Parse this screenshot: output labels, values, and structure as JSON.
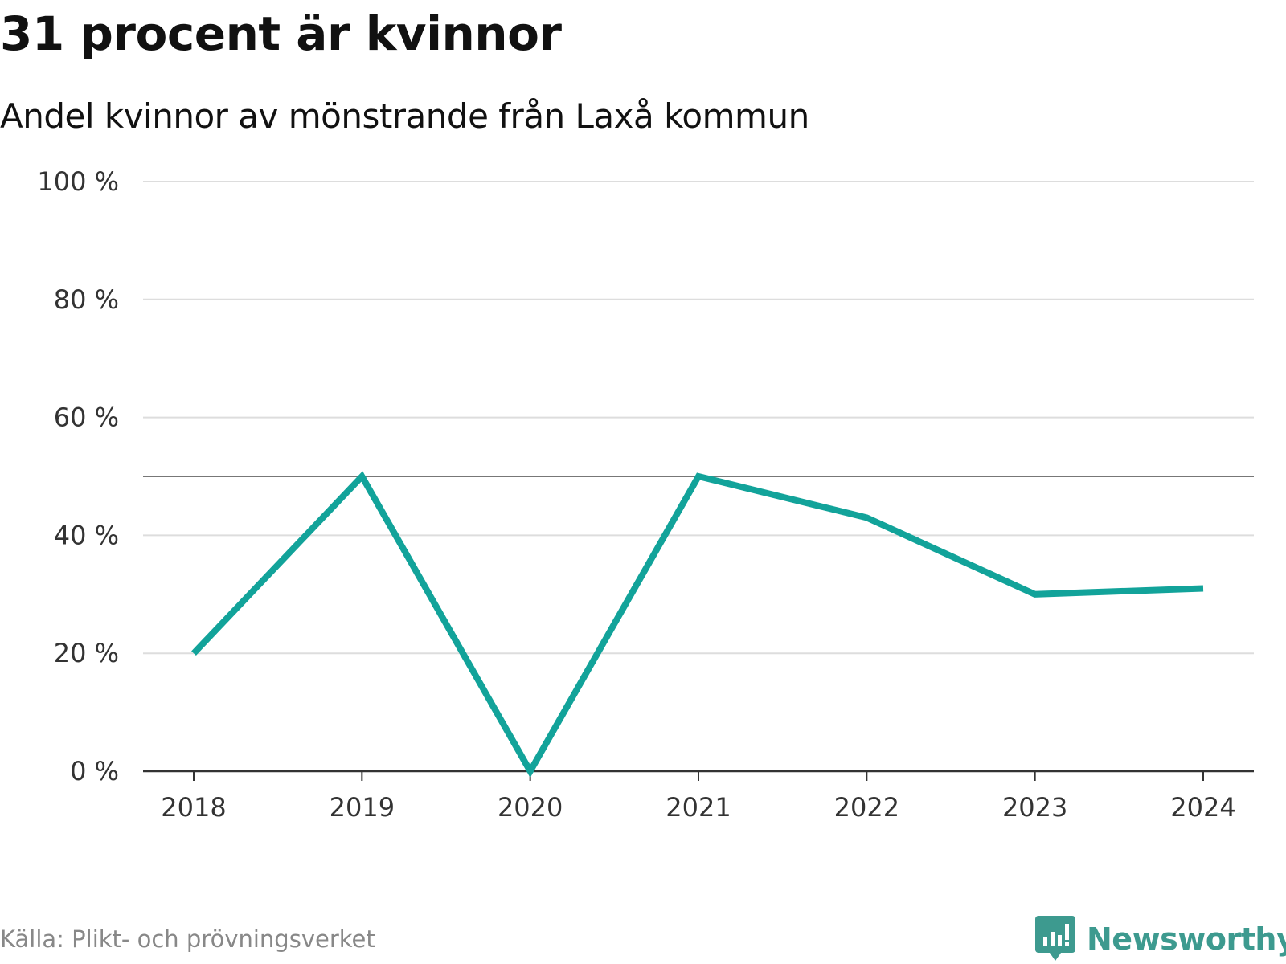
{
  "header": {
    "title": "31 procent är kvinnor",
    "subtitle": "Andel kvinnor av mönstrande från Laxå kommun"
  },
  "footer": {
    "source": "Källa: Plikt- och prövningsverket",
    "brand": "Newsworthy"
  },
  "colors": {
    "line": "#12a39a",
    "grid": "#dddddd",
    "reference": "#777777",
    "axis": "#333333",
    "brand": "#3d9a8f"
  },
  "chart_data": {
    "type": "line",
    "title": "31 procent är kvinnor",
    "subtitle": "Andel kvinnor av mönstrande från Laxå kommun",
    "xlabel": "",
    "ylabel": "",
    "categories": [
      "2018",
      "2019",
      "2020",
      "2021",
      "2022",
      "2023",
      "2024"
    ],
    "series": [
      {
        "name": "Andel kvinnor",
        "values": [
          20,
          50,
          0,
          50,
          43,
          30,
          31
        ]
      }
    ],
    "ylim": [
      0,
      100
    ],
    "yticks": [
      0,
      20,
      40,
      60,
      80,
      100
    ],
    "ytick_labels": [
      "0 %",
      "20 %",
      "40 %",
      "60 %",
      "80 %",
      "100 %"
    ],
    "reference_line": 50,
    "grid": true
  }
}
